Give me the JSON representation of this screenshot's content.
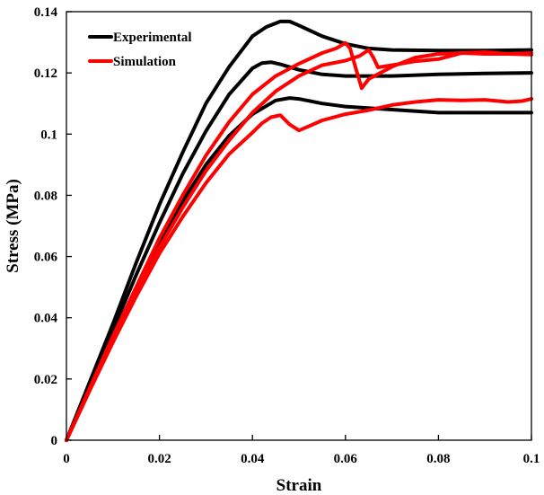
{
  "chart_data": {
    "type": "line",
    "xlabel": "Strain",
    "ylabel": "Stress (MPa)",
    "xlim": [
      0,
      0.1
    ],
    "ylim": [
      0,
      0.14
    ],
    "xticks": [
      0,
      0.02,
      0.04,
      0.06,
      0.08,
      0.1
    ],
    "xtick_labels": [
      "0",
      "0.02",
      "0.04",
      "0.06",
      "0.08",
      "0.1"
    ],
    "yticks": [
      0,
      0.02,
      0.04,
      0.06,
      0.08,
      0.1,
      0.12,
      0.14
    ],
    "ytick_labels": [
      "0",
      "0.02",
      "0.04",
      "0.06",
      "0.08",
      "0.1",
      "0.12",
      "0.14"
    ],
    "grid": false,
    "legend_position": "top-left",
    "legend": [
      {
        "label": "Experimental",
        "color": "#000000"
      },
      {
        "label": "Simulation",
        "color": "#ff0000"
      }
    ],
    "series": [
      {
        "group": "Experimental",
        "color": "#000000",
        "x": [
          0,
          0.005,
          0.01,
          0.015,
          0.02,
          0.025,
          0.03,
          0.035,
          0.04,
          0.043,
          0.046,
          0.048,
          0.05,
          0.055,
          0.06,
          0.065,
          0.07,
          0.08,
          0.09,
          0.1
        ],
        "y": [
          0,
          0.019,
          0.038,
          0.058,
          0.077,
          0.094,
          0.11,
          0.122,
          0.132,
          0.135,
          0.1368,
          0.1368,
          0.1355,
          0.132,
          0.1295,
          0.128,
          0.1275,
          0.1273,
          0.1273,
          0.1275
        ]
      },
      {
        "group": "Experimental",
        "color": "#000000",
        "x": [
          0,
          0.005,
          0.01,
          0.015,
          0.02,
          0.025,
          0.03,
          0.035,
          0.04,
          0.042,
          0.044,
          0.046,
          0.05,
          0.055,
          0.06,
          0.07,
          0.08,
          0.09,
          0.1
        ],
        "y": [
          0,
          0.018,
          0.036,
          0.054,
          0.071,
          0.087,
          0.101,
          0.113,
          0.1215,
          0.1232,
          0.1235,
          0.1228,
          0.121,
          0.1195,
          0.119,
          0.119,
          0.1195,
          0.1198,
          0.12
        ]
      },
      {
        "group": "Experimental",
        "color": "#000000",
        "x": [
          0,
          0.005,
          0.01,
          0.015,
          0.02,
          0.025,
          0.03,
          0.035,
          0.04,
          0.045,
          0.048,
          0.05,
          0.055,
          0.06,
          0.07,
          0.08,
          0.09,
          0.1
        ],
        "y": [
          0,
          0.0165,
          0.033,
          0.049,
          0.064,
          0.078,
          0.09,
          0.0995,
          0.1065,
          0.111,
          0.1118,
          0.1115,
          0.11,
          0.109,
          0.108,
          0.107,
          0.107,
          0.107
        ]
      },
      {
        "group": "Simulation",
        "color": "#ff0000",
        "x": [
          0,
          0.005,
          0.01,
          0.015,
          0.02,
          0.025,
          0.03,
          0.035,
          0.04,
          0.045,
          0.05,
          0.055,
          0.058,
          0.06,
          0.061,
          0.0625,
          0.0635,
          0.065,
          0.07,
          0.075,
          0.08,
          0.085,
          0.09,
          0.095,
          0.1
        ],
        "y": [
          0,
          0.017,
          0.034,
          0.05,
          0.066,
          0.08,
          0.093,
          0.104,
          0.113,
          0.119,
          0.123,
          0.1265,
          0.128,
          0.1298,
          0.128,
          0.12,
          0.115,
          0.118,
          0.122,
          0.125,
          0.1262,
          0.1265,
          0.1262,
          0.1262,
          0.1265
        ]
      },
      {
        "group": "Simulation",
        "color": "#ff0000",
        "x": [
          0,
          0.005,
          0.01,
          0.015,
          0.02,
          0.025,
          0.03,
          0.035,
          0.04,
          0.045,
          0.05,
          0.055,
          0.06,
          0.063,
          0.065,
          0.066,
          0.067,
          0.07,
          0.075,
          0.08,
          0.085,
          0.09,
          0.095,
          0.1
        ],
        "y": [
          0,
          0.0165,
          0.0325,
          0.048,
          0.063,
          0.076,
          0.088,
          0.098,
          0.107,
          0.114,
          0.119,
          0.1225,
          0.124,
          0.1255,
          0.1275,
          0.125,
          0.1218,
          0.1225,
          0.1238,
          0.1245,
          0.1265,
          0.1268,
          0.1262,
          0.126
        ]
      },
      {
        "group": "Simulation",
        "color": "#ff0000",
        "x": [
          0,
          0.005,
          0.01,
          0.015,
          0.02,
          0.025,
          0.03,
          0.035,
          0.04,
          0.042,
          0.044,
          0.046,
          0.048,
          0.05,
          0.052,
          0.055,
          0.06,
          0.065,
          0.07,
          0.075,
          0.08,
          0.085,
          0.09,
          0.095,
          0.098,
          0.1
        ],
        "y": [
          0,
          0.0162,
          0.032,
          0.047,
          0.061,
          0.073,
          0.084,
          0.0935,
          0.1005,
          0.1035,
          0.1055,
          0.1062,
          0.1032,
          0.1012,
          0.1025,
          0.1045,
          0.1065,
          0.1078,
          0.1095,
          0.1105,
          0.1112,
          0.111,
          0.1112,
          0.1105,
          0.1108,
          0.1115
        ]
      }
    ]
  }
}
